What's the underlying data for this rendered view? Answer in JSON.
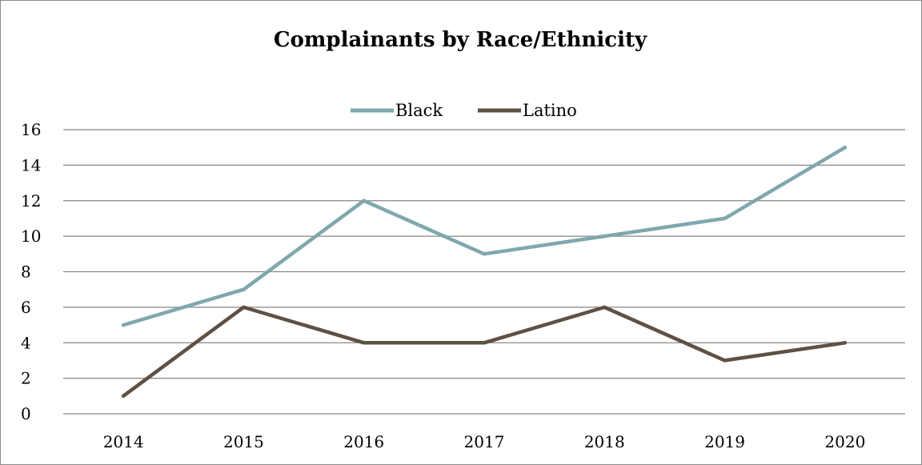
{
  "chart_data": {
    "type": "line",
    "title": "Complainants by Race/Ethnicity",
    "xlabel": "",
    "ylabel": "",
    "categories": [
      "2014",
      "2015",
      "2016",
      "2017",
      "2018",
      "2019",
      "2020"
    ],
    "series": [
      {
        "name": "Black",
        "color": "#7fa7ae",
        "values": [
          5,
          7,
          12,
          9,
          10,
          11,
          15
        ]
      },
      {
        "name": "Latino",
        "color": "#5e5043",
        "values": [
          1,
          6,
          4,
          4,
          6,
          3,
          4
        ]
      }
    ],
    "ylim": [
      0,
      16
    ],
    "yticks": [
      "0",
      "2",
      "4",
      "6",
      "8",
      "10",
      "12",
      "14",
      "16"
    ],
    "grid": true,
    "legend_position": "top-center"
  }
}
